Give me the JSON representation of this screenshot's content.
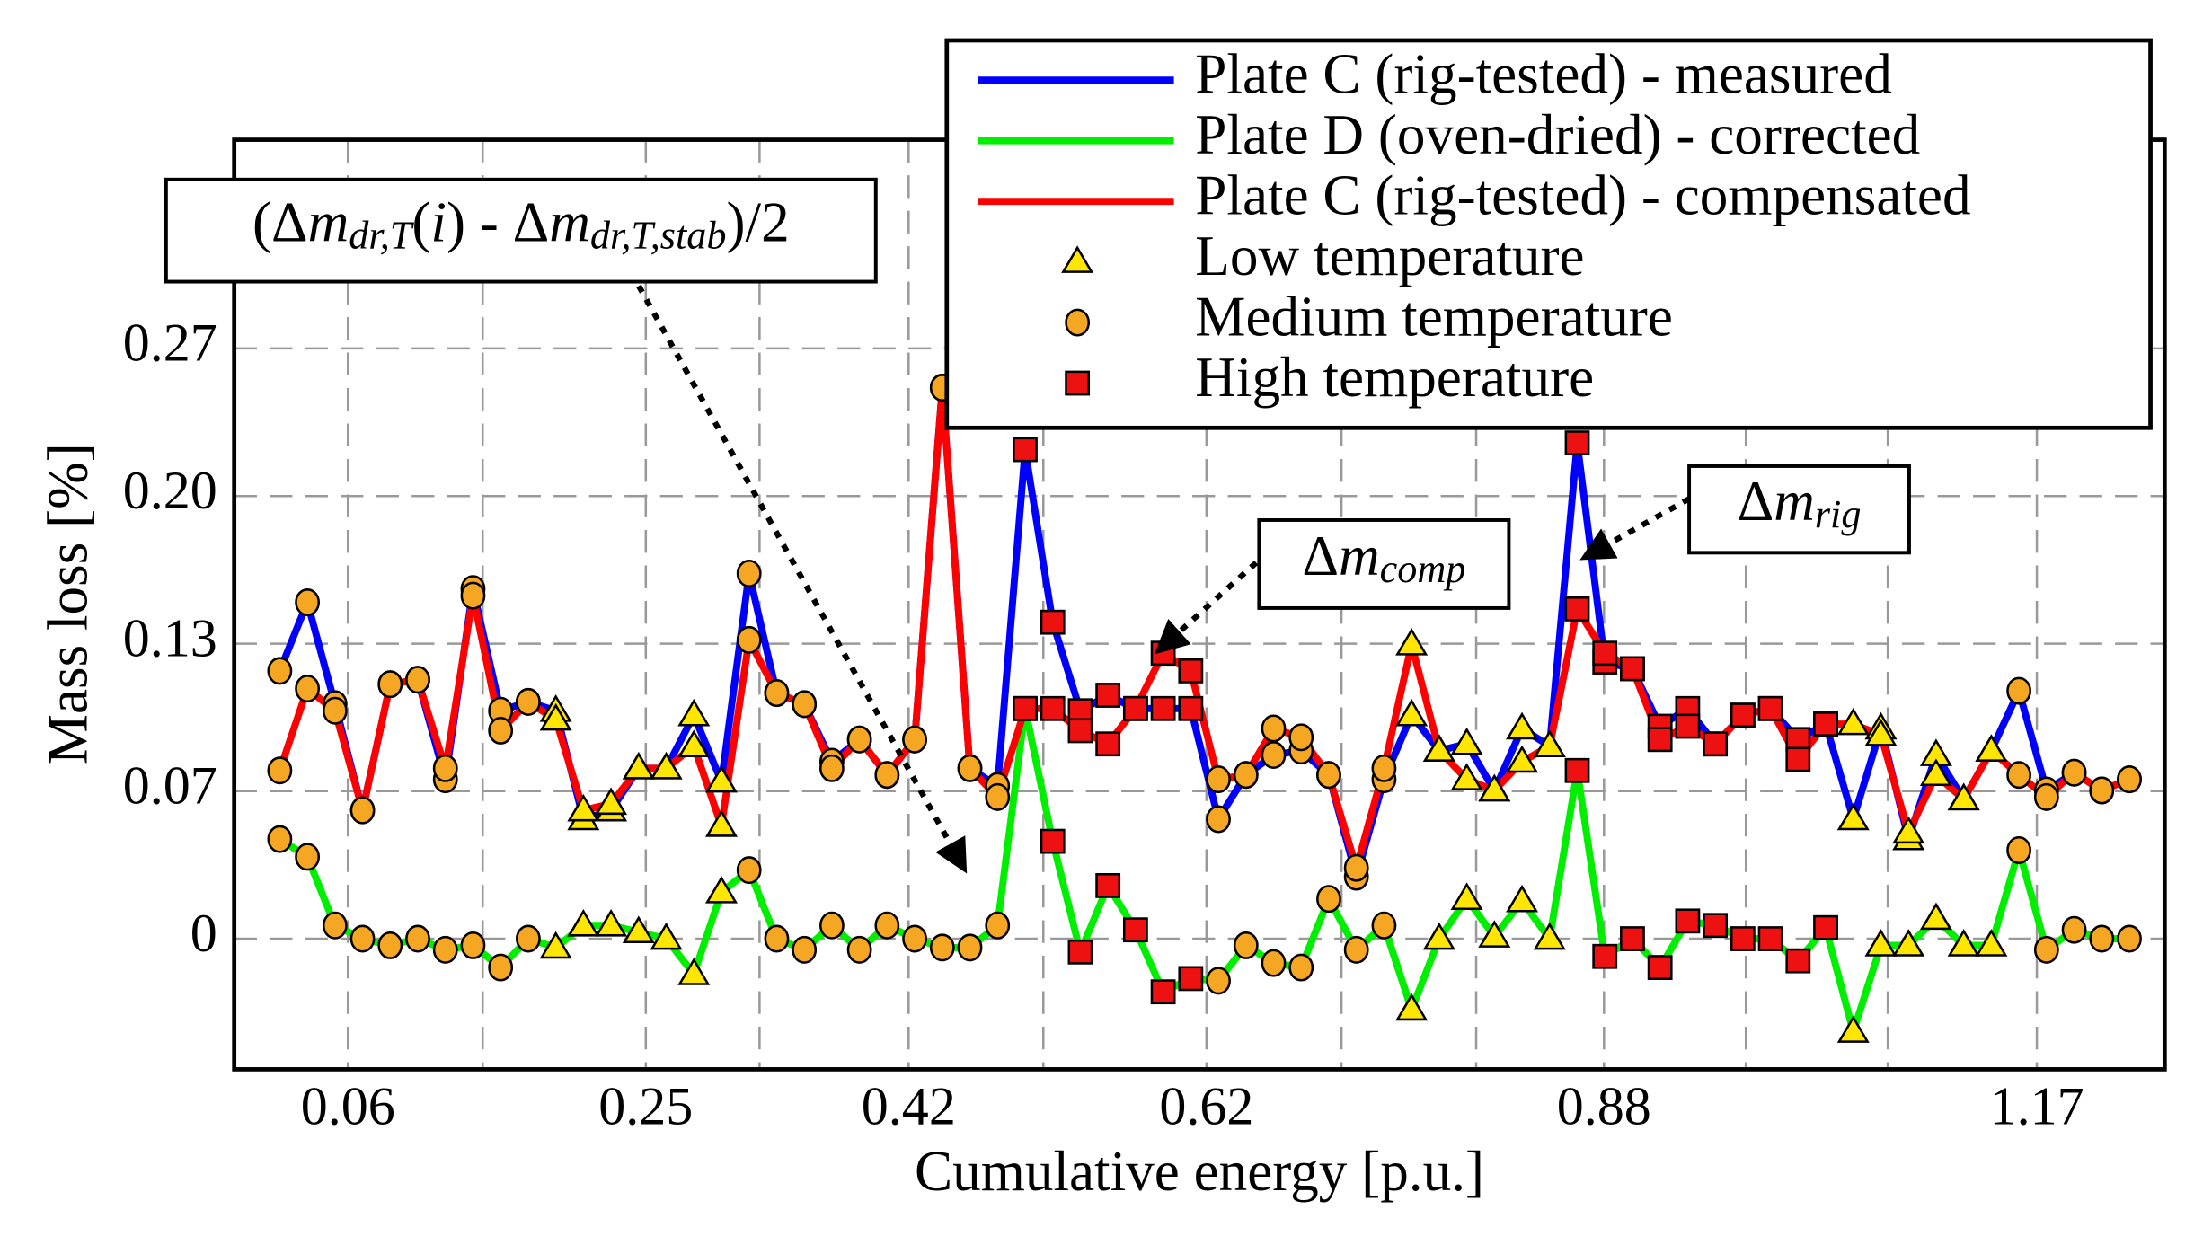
{
  "chart_data": {
    "type": "line",
    "xlabel": "Cumulative energy [p.u.]",
    "ylabel": "Mass loss [%]",
    "xlim": [
      -1.65,
      68.28
    ],
    "xticks": [
      {
        "value": 2.47,
        "label": "0.06"
      },
      {
        "value": 13.26,
        "label": "0.25"
      },
      {
        "value": 22.78,
        "label": "0.42"
      },
      {
        "value": 33.57,
        "label": "0.62"
      },
      {
        "value": 47.97,
        "label": "0.88"
      },
      {
        "value": 63.65,
        "label": "1.17"
      }
    ],
    "xminor": [
      7.35,
      17.38,
      27.66,
      38.46,
      43.34,
      53.11,
      58.25
    ],
    "ylim": [
      -0.059,
      0.361
    ],
    "yticks": [
      0,
      {
        "value": 0.0667,
        "label": "0.07"
      },
      {
        "value": 0.1333,
        "label": "0.13"
      },
      {
        "value": 0.2,
        "label": "0.20"
      },
      {
        "value": 0.2667,
        "label": "0.27"
      }
    ],
    "grid": true,
    "legend": "upper right",
    "series": [
      {
        "name": "Plate C (rig-tested) - measured",
        "color": "#0000ff",
        "values": [
          0.121,
          0.152,
          0.106,
          0.058,
          0.115,
          0.117,
          0.072,
          0.158,
          0.103,
          0.107,
          0.103,
          0.054,
          0.058,
          0.077,
          0.077,
          0.101,
          0.071,
          0.165,
          0.111,
          0.106,
          0.08,
          0.09,
          0.074,
          0.09,
          0.249,
          0.077,
          0.069,
          0.221,
          0.143,
          0.103,
          0.11,
          0.104,
          0.104,
          0.104,
          0.054,
          0.074,
          0.083,
          0.085,
          0.074,
          0.028,
          0.072,
          0.101,
          0.085,
          0.088,
          0.067,
          0.095,
          0.087,
          0.224,
          0.125,
          0.122,
          0.096,
          0.104,
          0.088,
          0.101,
          0.104,
          0.09,
          0.097,
          0.054,
          0.095,
          0.045,
          0.083,
          0.063,
          0.085,
          0.112,
          0.067,
          0.075,
          0.067,
          0.072
        ]
      },
      {
        "name": "Plate D (oven-dried) - corrected",
        "color": "#00ee00",
        "values": [
          0.045,
          0.037,
          0.006,
          0,
          -0.003,
          0,
          -0.005,
          -0.003,
          -0.013,
          0,
          -0.004,
          0.006,
          0.006,
          0.003,
          0,
          -0.016,
          0.021,
          0.031,
          0,
          -0.005,
          0.006,
          -0.005,
          0.006,
          0,
          -0.004,
          -0.004,
          0.006,
          0.104,
          0.044,
          -0.006,
          0.024,
          0.004,
          -0.024,
          -0.018,
          -0.019,
          -0.003,
          -0.011,
          -0.013,
          0.018,
          -0.005,
          0.006,
          -0.032,
          0,
          0.018,
          0.001,
          0.017,
          0,
          0.076,
          -0.008,
          0,
          -0.013,
          0.008,
          0.006,
          0,
          0,
          -0.01,
          0.005,
          -0.042,
          -0.003,
          -0.003,
          0.009,
          -0.003,
          -0.003,
          0.04,
          -0.005,
          0.004,
          0,
          0
        ]
      },
      {
        "name": "Plate C (rig-tested) - compensated",
        "color": "#ff0000",
        "values": [
          0.076,
          0.113,
          0.103,
          0.058,
          0.115,
          0.117,
          0.077,
          0.155,
          0.094,
          0.107,
          0.099,
          0.058,
          0.061,
          0.077,
          0.077,
          0.087,
          0.051,
          0.135,
          0.111,
          0.106,
          0.077,
          0.09,
          0.074,
          0.09,
          0.249,
          0.077,
          0.064,
          0.104,
          0.104,
          0.094,
          0.088,
          0.104,
          0.129,
          0.121,
          0.072,
          0.074,
          0.095,
          0.091,
          0.074,
          0.032,
          0.077,
          0.133,
          0.085,
          0.072,
          0.067,
          0.08,
          0.087,
          0.149,
          0.129,
          0.122,
          0.09,
          0.096,
          0.088,
          0.101,
          0.104,
          0.081,
          0.097,
          0.097,
          0.092,
          0.048,
          0.074,
          0.063,
          0.085,
          0.074,
          0.064,
          0.075,
          0.067,
          0.072
        ]
      }
    ],
    "markers": [
      {
        "name": "Low temperature",
        "shape": "triangle",
        "color": "#ffe600"
      },
      {
        "name": "Medium temperature",
        "shape": "ellipse",
        "color": "#f5a623"
      },
      {
        "name": "High temperature",
        "shape": "square",
        "color": "#ee1111"
      }
    ],
    "point_markers": [
      1,
      1,
      1,
      1,
      1,
      1,
      1,
      1,
      1,
      1,
      0,
      0,
      0,
      0,
      0,
      0,
      0,
      1,
      1,
      1,
      1,
      1,
      1,
      1,
      1,
      1,
      1,
      2,
      2,
      2,
      2,
      2,
      2,
      2,
      1,
      1,
      1,
      1,
      1,
      1,
      1,
      0,
      0,
      0,
      0,
      0,
      0,
      2,
      2,
      2,
      2,
      2,
      2,
      2,
      2,
      2,
      2,
      0,
      0,
      0,
      0,
      0,
      0,
      1,
      1,
      1,
      1,
      1
    ],
    "annotations": [
      {
        "parts": [
          {
            "text": "(Δ"
          },
          {
            "text": "m",
            "italic": true
          },
          {
            "text": "dr,T",
            "italic": true,
            "sub": true
          },
          {
            "text": "("
          },
          {
            "text": "i",
            "italic": true
          },
          {
            "text": ") - Δ"
          },
          {
            "text": "m",
            "italic": true
          },
          {
            "text": "dr,T,stab",
            "italic": true,
            "sub": true
          },
          {
            "text": ")/2"
          }
        ]
      },
      {
        "parts": [
          {
            "text": "Δ"
          },
          {
            "text": "m",
            "italic": true
          },
          {
            "text": "comp",
            "italic": true,
            "sub": true
          }
        ]
      },
      {
        "parts": [
          {
            "text": "Δ"
          },
          {
            "text": "m",
            "italic": true
          },
          {
            "text": "rig",
            "italic": true,
            "sub": true
          }
        ]
      }
    ]
  }
}
